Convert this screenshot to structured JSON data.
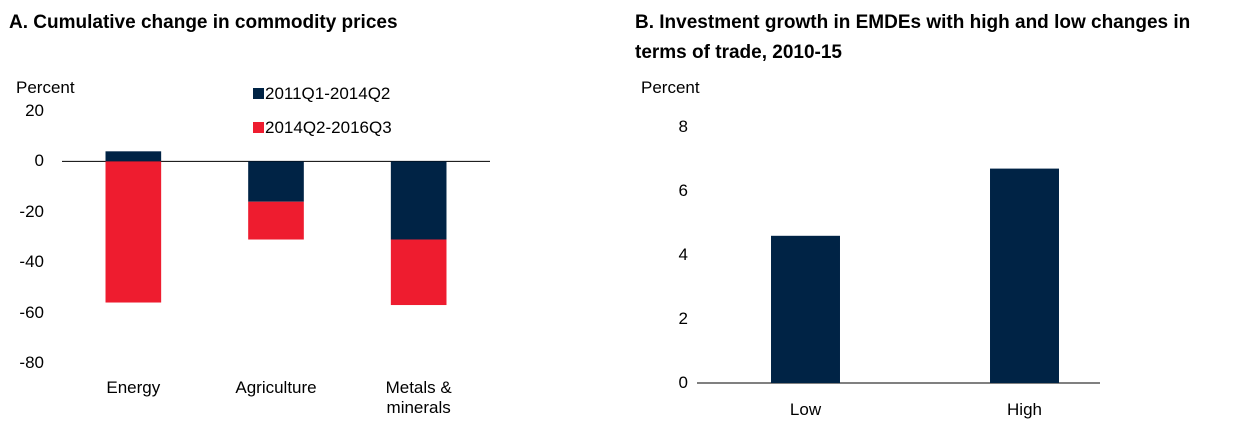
{
  "chart_data": [
    {
      "type": "bar",
      "stacked": true,
      "title": "A. Cumulative change in commodity prices",
      "y_label": "Percent",
      "categories": [
        "Energy",
        "Agriculture",
        "Metals & minerals"
      ],
      "series": [
        {
          "name": "2011Q1-2014Q2",
          "color": "#002345",
          "values": [
            4,
            -16,
            -31
          ]
        },
        {
          "name": "2014Q2-2016Q3",
          "color": "#ee1c2f",
          "values": [
            -56,
            -15,
            -26
          ]
        }
      ],
      "ylim": [
        -80,
        20
      ],
      "yticks": [
        -80,
        -60,
        -40,
        -20,
        0,
        20
      ]
    },
    {
      "type": "bar",
      "title": "B.  Investment growth in EMDEs with high and low changes in terms of trade, 2010-15",
      "y_label": "Percent",
      "categories": [
        "Low",
        "High"
      ],
      "values": [
        4.6,
        6.7
      ],
      "color": "#002345",
      "ylim": [
        0,
        8
      ],
      "yticks": [
        0,
        2,
        4,
        6,
        8
      ]
    }
  ]
}
